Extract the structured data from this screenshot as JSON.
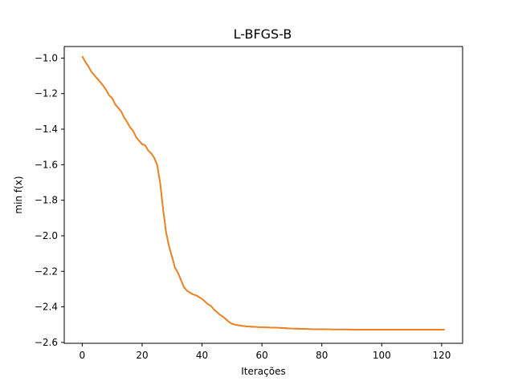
{
  "chart_data": {
    "type": "line",
    "title": "L-BFGS-B",
    "xlabel": "Iterações",
    "ylabel": "min f(x)",
    "xlim": [
      -6,
      127
    ],
    "ylim": [
      -2.605,
      -0.935
    ],
    "xticks": [
      0,
      20,
      40,
      60,
      80,
      100,
      120
    ],
    "xtick_labels": [
      "0",
      "20",
      "40",
      "60",
      "80",
      "100",
      "120"
    ],
    "yticks": [
      -1.0,
      -1.2,
      -1.4,
      -1.6,
      -1.8,
      -2.0,
      -2.2,
      -2.4,
      -2.6
    ],
    "ytick_labels": [
      "−1.0",
      "−1.2",
      "−1.4",
      "−1.6",
      "−1.8",
      "−2.0",
      "−2.2",
      "−2.4",
      "−2.6"
    ],
    "grid": false,
    "series": [
      {
        "color": "#1f77b4",
        "x": [
          0,
          1,
          2,
          3,
          4,
          5,
          6,
          7,
          8,
          9,
          10,
          11,
          12,
          13,
          14,
          15,
          16,
          17,
          18,
          19,
          20,
          21,
          22,
          23,
          24,
          25,
          26,
          27,
          28,
          29,
          30,
          31,
          32,
          33,
          34,
          35,
          36,
          37,
          38,
          39,
          40,
          41,
          42,
          43,
          44,
          45,
          46,
          47,
          48,
          49,
          50,
          51,
          52,
          53,
          54,
          55,
          56,
          57,
          58,
          59,
          60,
          62,
          64,
          66,
          68,
          70,
          72,
          74,
          76,
          78,
          80,
          84,
          88,
          92,
          96,
          100,
          104,
          108,
          112,
          116,
          121
        ],
        "y": [
          -0.99,
          -1.02,
          -1.045,
          -1.075,
          -1.095,
          -1.115,
          -1.135,
          -1.155,
          -1.18,
          -1.21,
          -1.225,
          -1.26,
          -1.28,
          -1.3,
          -1.335,
          -1.36,
          -1.39,
          -1.41,
          -1.445,
          -1.465,
          -1.485,
          -1.49,
          -1.52,
          -1.535,
          -1.56,
          -1.6,
          -1.7,
          -1.85,
          -1.98,
          -2.06,
          -2.12,
          -2.18,
          -2.21,
          -2.25,
          -2.29,
          -2.31,
          -2.32,
          -2.33,
          -2.335,
          -2.345,
          -2.355,
          -2.37,
          -2.385,
          -2.395,
          -2.415,
          -2.43,
          -2.445,
          -2.455,
          -2.47,
          -2.485,
          -2.495,
          -2.5,
          -2.503,
          -2.506,
          -2.508,
          -2.51,
          -2.511,
          -2.512,
          -2.513,
          -2.514,
          -2.515,
          -2.516,
          -2.517,
          -2.518,
          -2.52,
          -2.522,
          -2.523,
          -2.524,
          -2.525,
          -2.526,
          -2.526,
          -2.527,
          -2.527,
          -2.528,
          -2.528,
          -2.528,
          -2.528,
          -2.528,
          -2.528,
          -2.528,
          -2.528
        ]
      },
      {
        "color": "#ff7f0e",
        "x": [
          0,
          1,
          2,
          3,
          4,
          5,
          6,
          7,
          8,
          9,
          10,
          11,
          12,
          13,
          14,
          15,
          16,
          17,
          18,
          19,
          20,
          21,
          22,
          23,
          24,
          25,
          26,
          27,
          28,
          29,
          30,
          31,
          32,
          33,
          34,
          35,
          36,
          37,
          38,
          39,
          40,
          41,
          42,
          43,
          44,
          45,
          46,
          47,
          48,
          49,
          50,
          51,
          52,
          53,
          54,
          55,
          56,
          57,
          58,
          59,
          60,
          62,
          64,
          66,
          68,
          70,
          72,
          74,
          76,
          78,
          80,
          84,
          88,
          92,
          96,
          100,
          104,
          108,
          112,
          116,
          121
        ],
        "y": [
          -0.99,
          -1.02,
          -1.045,
          -1.075,
          -1.095,
          -1.115,
          -1.135,
          -1.155,
          -1.18,
          -1.21,
          -1.225,
          -1.26,
          -1.28,
          -1.3,
          -1.335,
          -1.36,
          -1.39,
          -1.41,
          -1.445,
          -1.465,
          -1.485,
          -1.49,
          -1.52,
          -1.535,
          -1.56,
          -1.6,
          -1.7,
          -1.85,
          -1.98,
          -2.06,
          -2.12,
          -2.18,
          -2.21,
          -2.25,
          -2.29,
          -2.31,
          -2.32,
          -2.33,
          -2.335,
          -2.345,
          -2.355,
          -2.37,
          -2.385,
          -2.395,
          -2.415,
          -2.43,
          -2.445,
          -2.455,
          -2.47,
          -2.485,
          -2.495,
          -2.5,
          -2.503,
          -2.506,
          -2.508,
          -2.51,
          -2.511,
          -2.512,
          -2.513,
          -2.514,
          -2.515,
          -2.516,
          -2.517,
          -2.518,
          -2.52,
          -2.522,
          -2.523,
          -2.524,
          -2.525,
          -2.526,
          -2.526,
          -2.527,
          -2.527,
          -2.528,
          -2.528,
          -2.528,
          -2.528,
          -2.528,
          -2.528,
          -2.528,
          -2.528
        ]
      }
    ]
  }
}
